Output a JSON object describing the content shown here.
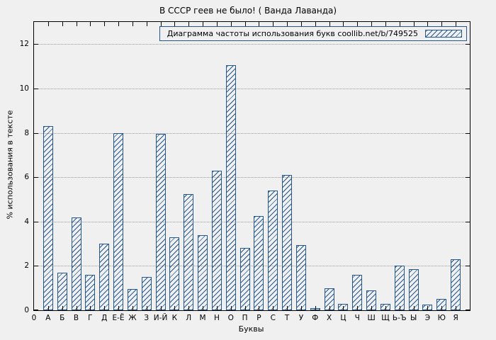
{
  "chart_data": {
    "type": "bar",
    "title": "В СССР геев не было! ( Ванда Лаванда)",
    "legend": "Диаграмма частоты использования букв coollib.net/b/749525",
    "legend_position": "top-right",
    "xlabel": "Буквы",
    "ylabel": "% использования в тексте",
    "origin_label": "0",
    "categories": [
      "А",
      "Б",
      "В",
      "Г",
      "Д",
      "Е-Ё",
      "Ж",
      "З",
      "И-Й",
      "К",
      "Л",
      "М",
      "Н",
      "О",
      "П",
      "Р",
      "С",
      "Т",
      "У",
      "Ф",
      "Х",
      "Ц",
      "Ч",
      "Ш",
      "Щ",
      "Ь-Ъ",
      "Ы",
      "Э",
      "Ю",
      "Я"
    ],
    "values": [
      8.3,
      1.7,
      4.2,
      1.6,
      3.0,
      8.0,
      0.95,
      1.5,
      7.95,
      3.3,
      5.25,
      3.4,
      6.3,
      11.05,
      2.8,
      4.25,
      5.4,
      6.1,
      2.95,
      0.1,
      1.0,
      0.3,
      1.6,
      0.9,
      0.3,
      2.0,
      1.85,
      0.25,
      0.5,
      2.3
    ],
    "yticks": [
      0,
      2,
      4,
      6,
      8,
      10,
      12
    ],
    "ylim": [
      0,
      13
    ],
    "grid": true,
    "bar_color": "#24578f",
    "background_color": "#f0f0f0"
  }
}
